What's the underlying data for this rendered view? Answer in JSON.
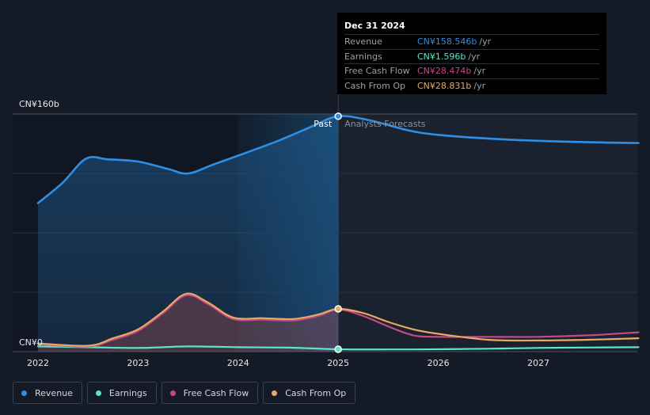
{
  "chart_data": {
    "type": "line",
    "x_ticks": [
      "2022",
      "2023",
      "2024",
      "2025",
      "2026",
      "2027"
    ],
    "y_labels": {
      "top": "CN¥160b",
      "bottom": "CN¥0"
    },
    "ylim": [
      0,
      160
    ],
    "divider_labels": {
      "past": "Past",
      "forecast": "Analysts Forecasts"
    },
    "series": [
      {
        "name": "Revenue",
        "color": "#2d8fe5",
        "points": [
          [
            2022.0,
            100
          ],
          [
            2022.25,
            114
          ],
          [
            2022.48,
            130
          ],
          [
            2022.7,
            129.5
          ],
          [
            2023.0,
            128
          ],
          [
            2023.3,
            123
          ],
          [
            2023.5,
            120
          ],
          [
            2023.75,
            126
          ],
          [
            2024.0,
            132
          ],
          [
            2024.4,
            142
          ],
          [
            2024.75,
            152
          ],
          [
            2025.0,
            158.5
          ],
          [
            2025.3,
            156
          ],
          [
            2025.7,
            149
          ],
          [
            2026.0,
            146
          ],
          [
            2026.5,
            143.5
          ],
          [
            2027.0,
            142
          ],
          [
            2027.5,
            141
          ],
          [
            2028.0,
            140.5
          ]
        ]
      },
      {
        "name": "Earnings",
        "color": "#5ee5c9",
        "points": [
          [
            2022.0,
            3.5
          ],
          [
            2022.5,
            3
          ],
          [
            2023.0,
            2.5
          ],
          [
            2023.5,
            3.5
          ],
          [
            2024.0,
            3
          ],
          [
            2024.5,
            2.7
          ],
          [
            2025.0,
            1.6
          ],
          [
            2025.5,
            1.5
          ],
          [
            2026.0,
            1.6
          ],
          [
            2026.5,
            2
          ],
          [
            2027.0,
            2.5
          ],
          [
            2027.5,
            2.8
          ],
          [
            2028.0,
            3
          ]
        ]
      },
      {
        "name": "Free Cash Flow",
        "color": "#c4498c",
        "points": [
          [
            2022.0,
            5
          ],
          [
            2022.5,
            3.5
          ],
          [
            2022.75,
            8
          ],
          [
            2023.0,
            14
          ],
          [
            2023.25,
            26
          ],
          [
            2023.48,
            38
          ],
          [
            2023.7,
            32
          ],
          [
            2023.95,
            22
          ],
          [
            2024.25,
            21.5
          ],
          [
            2024.55,
            21
          ],
          [
            2024.8,
            24
          ],
          [
            2025.0,
            28.5
          ],
          [
            2025.25,
            24
          ],
          [
            2025.5,
            17
          ],
          [
            2025.75,
            11
          ],
          [
            2026.0,
            10
          ],
          [
            2026.5,
            10
          ],
          [
            2027.0,
            10
          ],
          [
            2027.5,
            11
          ],
          [
            2028.0,
            13
          ]
        ]
      },
      {
        "name": "Cash From Op",
        "color": "#e8a962",
        "points": [
          [
            2022.0,
            5.5
          ],
          [
            2022.5,
            4
          ],
          [
            2022.75,
            9
          ],
          [
            2023.0,
            15
          ],
          [
            2023.25,
            27
          ],
          [
            2023.48,
            39
          ],
          [
            2023.7,
            33
          ],
          [
            2023.95,
            23
          ],
          [
            2024.25,
            22.5
          ],
          [
            2024.55,
            22
          ],
          [
            2024.8,
            25
          ],
          [
            2025.0,
            28.8
          ],
          [
            2025.25,
            26
          ],
          [
            2025.5,
            20
          ],
          [
            2025.75,
            15
          ],
          [
            2026.0,
            12
          ],
          [
            2026.5,
            8
          ],
          [
            2027.0,
            7.5
          ],
          [
            2027.5,
            8
          ],
          [
            2028.0,
            9
          ]
        ]
      }
    ]
  },
  "tooltip": {
    "date": "Dec 31 2024",
    "unit": "/yr",
    "rows": [
      {
        "label": "Revenue",
        "value": "CN¥158.546b",
        "color": "#2d8fe5"
      },
      {
        "label": "Earnings",
        "value": "CN¥1.596b",
        "color": "#5ee5c9"
      },
      {
        "label": "Free Cash Flow",
        "value": "CN¥28.474b",
        "color": "#c4498c"
      },
      {
        "label": "Cash From Op",
        "value": "CN¥28.831b",
        "color": "#e8a962"
      }
    ]
  },
  "legend": [
    {
      "label": "Revenue",
      "color": "#2d8fe5"
    },
    {
      "label": "Earnings",
      "color": "#5ee5c9"
    },
    {
      "label": "Free Cash Flow",
      "color": "#c4498c"
    },
    {
      "label": "Cash From Op",
      "color": "#e8a962"
    }
  ]
}
